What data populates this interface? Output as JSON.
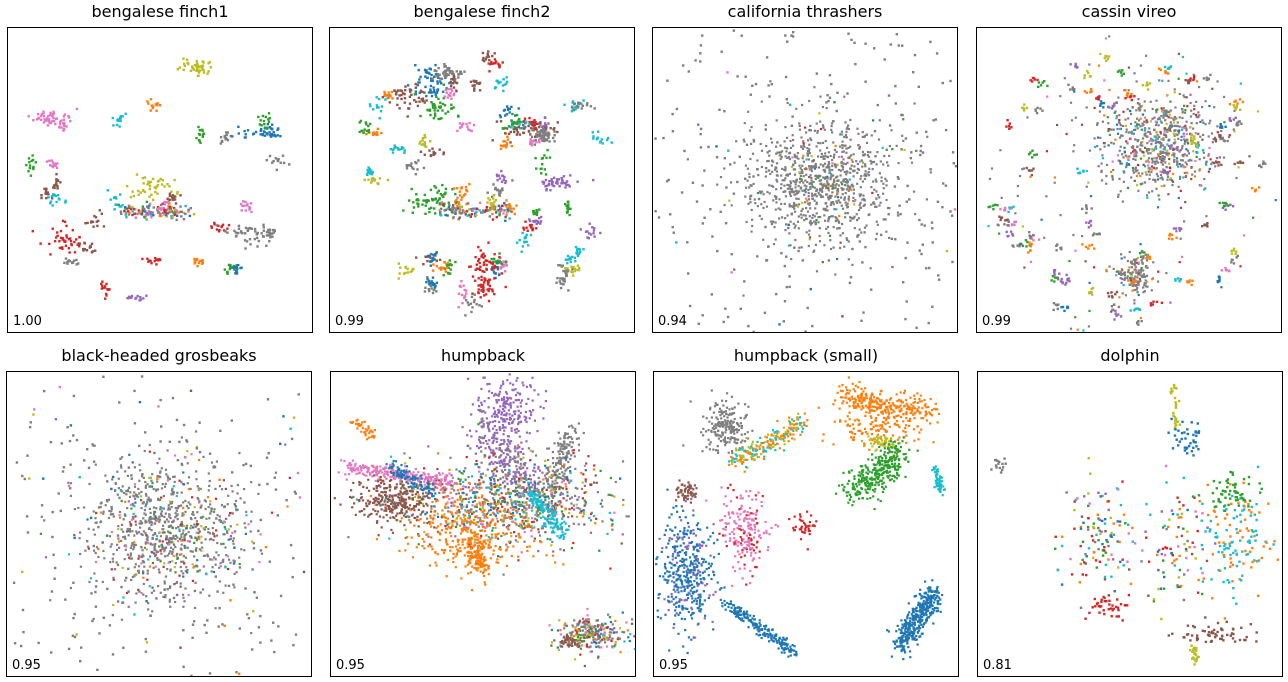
{
  "chart_data": [
    {
      "type": "scatter",
      "title": "bengalese finch1",
      "score": "1.00",
      "layout": "clusters",
      "n_clusters": 34,
      "gray_weight": 0.1,
      "axes": "none"
    },
    {
      "type": "scatter",
      "title": "bengalese finch2",
      "score": "0.99",
      "layout": "clusters",
      "n_clusters": 70,
      "gray_weight": 0.12,
      "axes": "none"
    },
    {
      "type": "scatter",
      "title": "california thrashers",
      "score": "0.94",
      "layout": "blob",
      "blob_center": [
        0.55,
        0.5
      ],
      "blob_radius": 0.12,
      "gray_weight": 0.9,
      "axes": "none"
    },
    {
      "type": "scatter",
      "title": "cassin vireo",
      "score": "0.99",
      "layout": "blob-clusters",
      "blob_center": [
        0.6,
        0.38
      ],
      "blob_radius": 0.1,
      "n_clusters": 90,
      "gray_weight": 0.3,
      "axes": "none"
    },
    {
      "type": "scatter",
      "title": "black-headed grosbeaks",
      "score": "0.95",
      "layout": "blob",
      "blob_center": [
        0.52,
        0.52
      ],
      "blob_radius": 0.13,
      "gray_weight": 0.75,
      "axes": "none"
    },
    {
      "type": "scatter",
      "title": "humpback",
      "score": "0.95",
      "layout": "structure",
      "gray_weight": 0.2,
      "axes": "none"
    },
    {
      "type": "scatter",
      "title": "humpback (small)",
      "score": "0.95",
      "layout": "arcs",
      "gray_weight": 0.05,
      "axes": "none"
    },
    {
      "type": "scatter",
      "title": "dolphin",
      "score": "0.81",
      "layout": "sparse",
      "gray_weight": 0.05,
      "axes": "none"
    }
  ],
  "colors": [
    "#1f77b4",
    "#ff7f0e",
    "#2ca02c",
    "#d62728",
    "#9467bd",
    "#8c564b",
    "#e377c2",
    "#7f7f7f",
    "#bcbd22",
    "#17becf"
  ]
}
